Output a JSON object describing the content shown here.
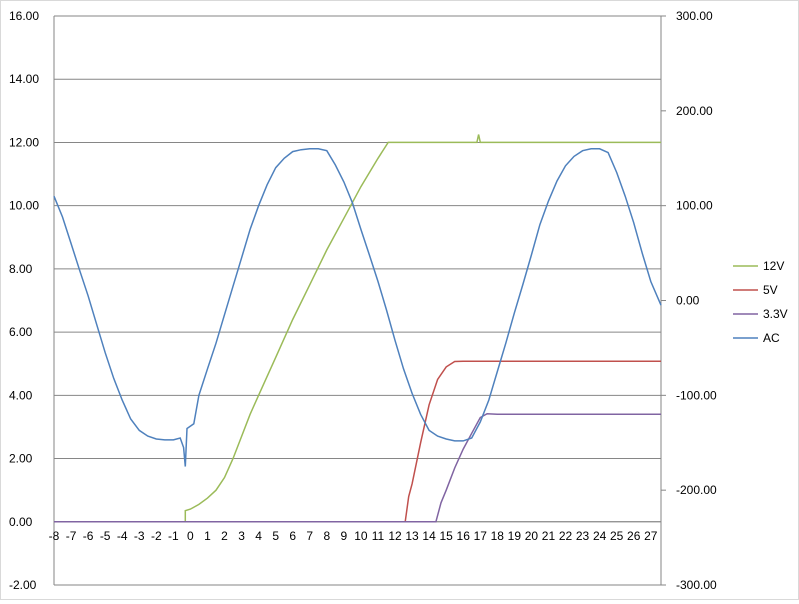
{
  "chart_data": {
    "type": "line",
    "title": "",
    "xlabel": "",
    "ylabel": "",
    "xlim": [
      -8,
      27.6
    ],
    "x_ticks": [
      "-8",
      "-7",
      "-6",
      "-5",
      "-4",
      "-3",
      "-2",
      "-1",
      "0",
      "1",
      "2",
      "3",
      "4",
      "5",
      "6",
      "7",
      "8",
      "9",
      "10",
      "11",
      "12",
      "13",
      "14",
      "15",
      "16",
      "17",
      "18",
      "19",
      "20",
      "21",
      "22",
      "23",
      "24",
      "25",
      "26",
      "27"
    ],
    "ylim_left": [
      -2,
      16
    ],
    "ylim_right": [
      -300,
      300
    ],
    "y_ticks_left": [
      "-2.00",
      "0.00",
      "2.00",
      "4.00",
      "6.00",
      "8.00",
      "10.00",
      "12.00",
      "14.00",
      "16.00"
    ],
    "y_ticks_right": [
      "-300.00",
      "-200.00",
      "-100.00",
      "0.00",
      "100.00",
      "200.00",
      "300.00"
    ],
    "grid": "horizontal",
    "legend_position": "right",
    "series": [
      {
        "name": "12V",
        "axis": "left",
        "color": "#9BBB59",
        "points": [
          [
            -0.3,
            0.0
          ],
          [
            -0.3,
            0.35
          ],
          [
            0,
            0.4
          ],
          [
            0.5,
            0.55
          ],
          [
            1.0,
            0.75
          ],
          [
            1.5,
            1.0
          ],
          [
            2.0,
            1.4
          ],
          [
            2.5,
            2.0
          ],
          [
            3.0,
            2.7
          ],
          [
            3.5,
            3.4
          ],
          [
            4.0,
            4.0
          ],
          [
            5.0,
            5.2
          ],
          [
            6.0,
            6.4
          ],
          [
            7.0,
            7.5
          ],
          [
            8.0,
            8.6
          ],
          [
            9.0,
            9.6
          ],
          [
            10.0,
            10.6
          ],
          [
            11.0,
            11.5
          ],
          [
            11.6,
            12.0
          ],
          [
            12.0,
            12.0
          ],
          [
            14.0,
            12.0
          ],
          [
            16.0,
            12.0
          ],
          [
            16.8,
            12.0
          ],
          [
            16.9,
            12.25
          ],
          [
            17.0,
            12.0
          ],
          [
            20.0,
            12.0
          ],
          [
            24.0,
            12.0
          ],
          [
            27.6,
            12.0
          ]
        ]
      },
      {
        "name": "5V",
        "axis": "left",
        "color": "#C0504D",
        "points": [
          [
            -8,
            0.0
          ],
          [
            12.6,
            0.0
          ],
          [
            12.8,
            0.8
          ],
          [
            13.0,
            1.2
          ],
          [
            13.5,
            2.5
          ],
          [
            14.0,
            3.7
          ],
          [
            14.5,
            4.5
          ],
          [
            15.0,
            4.9
          ],
          [
            15.5,
            5.07
          ],
          [
            16.0,
            5.08
          ],
          [
            20.0,
            5.08
          ],
          [
            27.6,
            5.08
          ]
        ]
      },
      {
        "name": "3.3V",
        "axis": "left",
        "color": "#8064A2",
        "points": [
          [
            -8,
            0.0
          ],
          [
            14.4,
            0.0
          ],
          [
            14.7,
            0.6
          ],
          [
            15.0,
            1.0
          ],
          [
            15.5,
            1.7
          ],
          [
            16.0,
            2.3
          ],
          [
            16.5,
            2.8
          ],
          [
            17.0,
            3.3
          ],
          [
            17.4,
            3.42
          ],
          [
            18.0,
            3.4
          ],
          [
            22.0,
            3.4
          ],
          [
            27.6,
            3.4
          ]
        ]
      },
      {
        "name": "AC",
        "axis": "right",
        "color": "#4F81BD",
        "points": [
          [
            -8.0,
            110
          ],
          [
            -7.5,
            88
          ],
          [
            -7.0,
            60
          ],
          [
            -6.5,
            32
          ],
          [
            -6.0,
            5
          ],
          [
            -5.5,
            -25
          ],
          [
            -5.0,
            -55
          ],
          [
            -4.5,
            -82
          ],
          [
            -4.0,
            -105
          ],
          [
            -3.5,
            -125
          ],
          [
            -3.0,
            -137
          ],
          [
            -2.5,
            -143
          ],
          [
            -2.0,
            -146
          ],
          [
            -1.5,
            -147
          ],
          [
            -1.0,
            -147
          ],
          [
            -0.6,
            -145
          ],
          [
            -0.4,
            -155
          ],
          [
            -0.3,
            -175
          ],
          [
            -0.2,
            -135
          ],
          [
            0.2,
            -130
          ],
          [
            0.5,
            -100
          ],
          [
            1.0,
            -72
          ],
          [
            1.5,
            -45
          ],
          [
            2.0,
            -15
          ],
          [
            2.5,
            15
          ],
          [
            3.0,
            45
          ],
          [
            3.5,
            75
          ],
          [
            4.0,
            100
          ],
          [
            4.5,
            122
          ],
          [
            5.0,
            140
          ],
          [
            5.5,
            150
          ],
          [
            6.0,
            157
          ],
          [
            6.5,
            159
          ],
          [
            7.0,
            160
          ],
          [
            7.5,
            160
          ],
          [
            8.0,
            158
          ],
          [
            8.5,
            143
          ],
          [
            9.0,
            125
          ],
          [
            9.5,
            103
          ],
          [
            10.0,
            75
          ],
          [
            10.5,
            48
          ],
          [
            11.0,
            20
          ],
          [
            11.5,
            -10
          ],
          [
            12.0,
            -42
          ],
          [
            12.5,
            -72
          ],
          [
            13.0,
            -98
          ],
          [
            13.5,
            -120
          ],
          [
            14.0,
            -137
          ],
          [
            14.5,
            -143
          ],
          [
            15.0,
            -146
          ],
          [
            15.5,
            -148
          ],
          [
            16.0,
            -148
          ],
          [
            16.5,
            -145
          ],
          [
            17.0,
            -128
          ],
          [
            17.5,
            -105
          ],
          [
            18.0,
            -75
          ],
          [
            18.5,
            -45
          ],
          [
            19.0,
            -13
          ],
          [
            19.5,
            17
          ],
          [
            20.0,
            48
          ],
          [
            20.5,
            80
          ],
          [
            21.0,
            105
          ],
          [
            21.5,
            126
          ],
          [
            22.0,
            142
          ],
          [
            22.5,
            152
          ],
          [
            23.0,
            158
          ],
          [
            23.5,
            160
          ],
          [
            24.0,
            160
          ],
          [
            24.5,
            156
          ],
          [
            25.0,
            135
          ],
          [
            25.5,
            110
          ],
          [
            26.0,
            82
          ],
          [
            26.5,
            50
          ],
          [
            27.0,
            20
          ],
          [
            27.6,
            -5
          ]
        ]
      }
    ]
  }
}
